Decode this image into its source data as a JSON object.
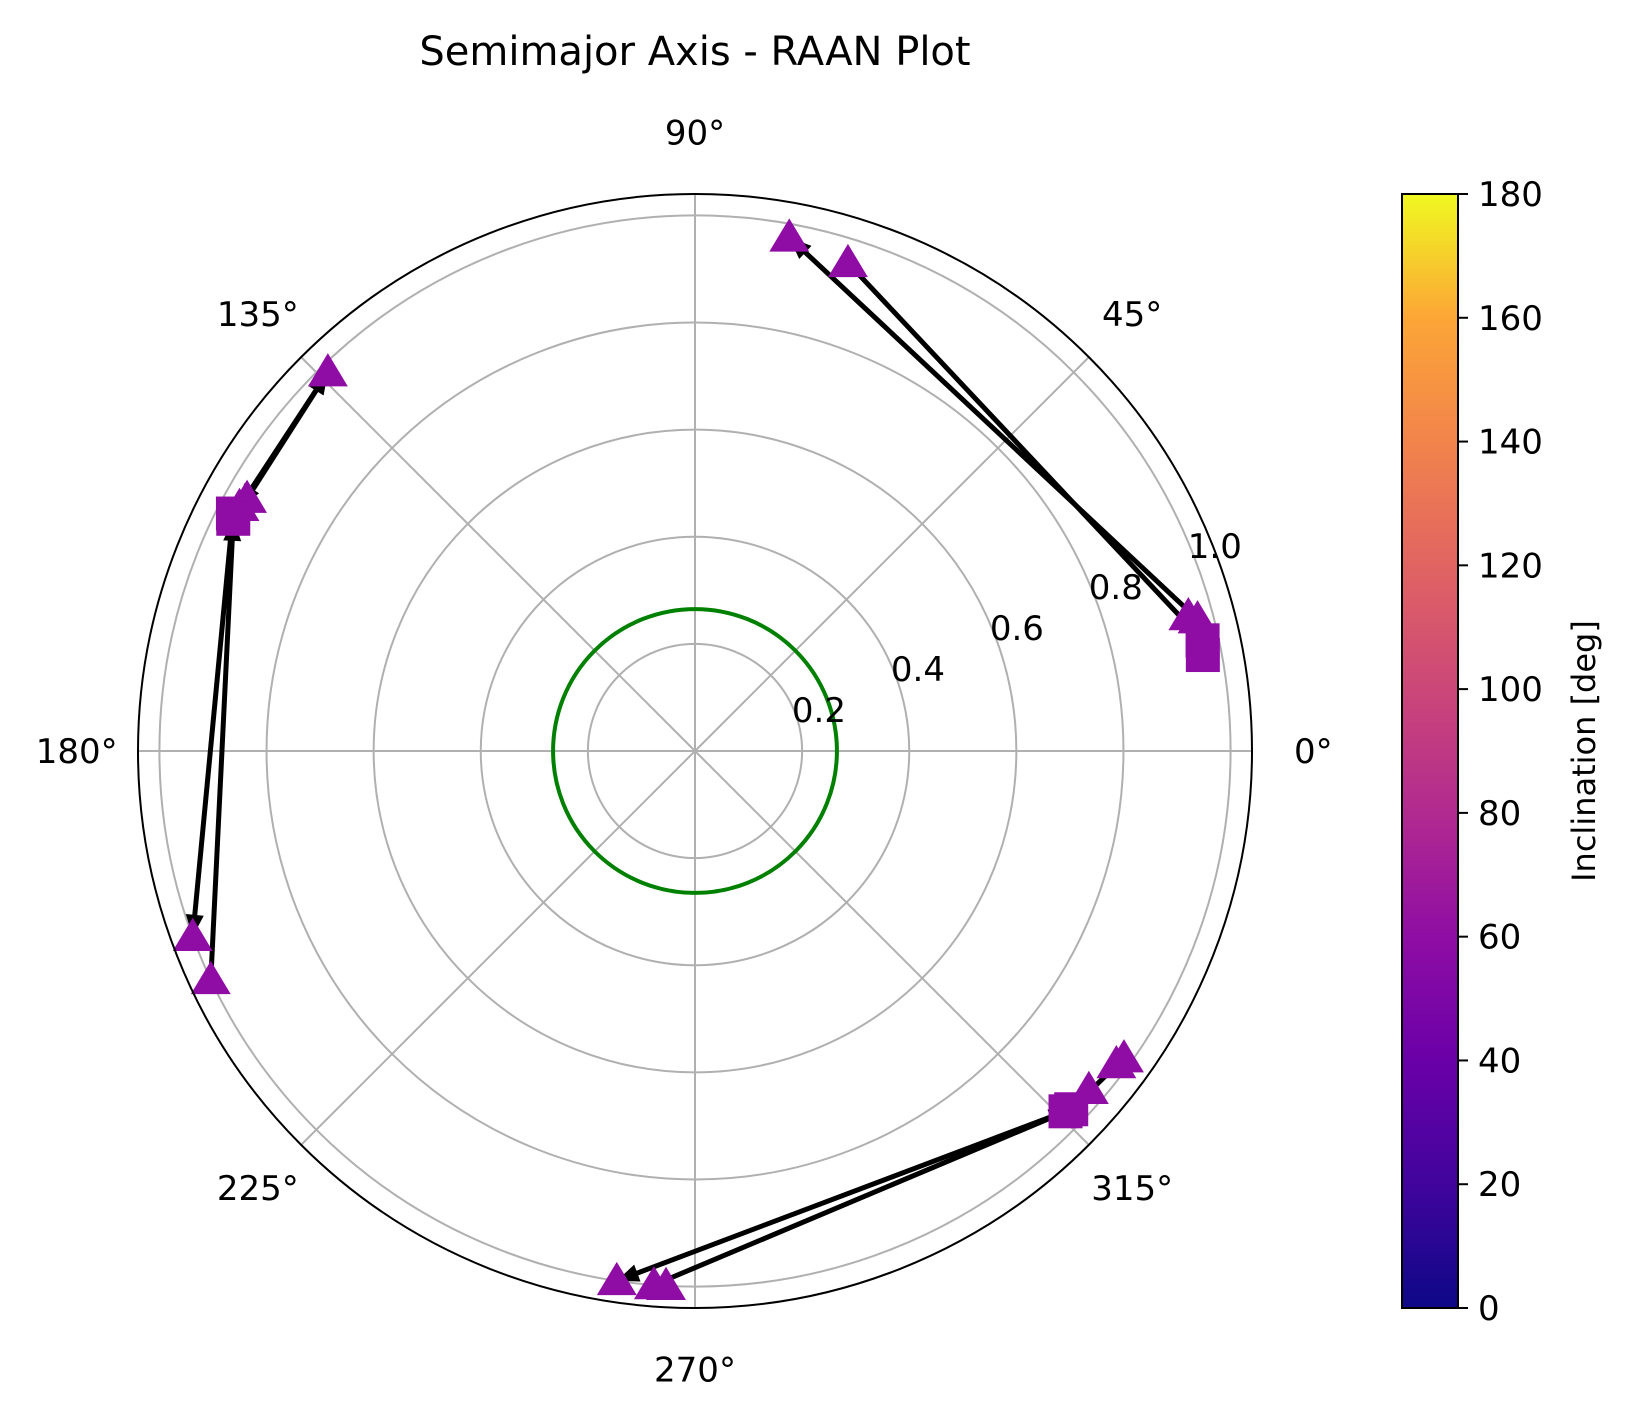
{
  "chart_data": {
    "type": "scatter",
    "subtype": "polar",
    "title": "Semimajor Axis - RAAN Plot",
    "angle_unit": "degrees",
    "angle_ticks": [
      "0°",
      "45°",
      "90°",
      "135°",
      "180°",
      "225°",
      "270°",
      "315°"
    ],
    "radial_ticks": [
      "0.2",
      "0.4",
      "0.6",
      "0.8",
      "1.0"
    ],
    "radial_tick_values": [
      0.2,
      0.4,
      0.6,
      0.8,
      1.0
    ],
    "rlim": [
      0,
      1.04
    ],
    "grid": true,
    "reference_circle": {
      "r": 0.265,
      "color": "#008000"
    },
    "marker_color": "#8f0da4",
    "colorbar": {
      "label": "Inclination [deg]",
      "ticks": [
        "0",
        "20",
        "40",
        "60",
        "80",
        "100",
        "120",
        "140",
        "160",
        "180"
      ],
      "range": [
        0,
        180
      ],
      "colormap": "plasma"
    },
    "markers": [
      {
        "shape": "triangle",
        "theta": 79.6,
        "r": 0.975,
        "inclination": 57
      },
      {
        "shape": "triangle",
        "theta": 72.6,
        "r": 0.955,
        "inclination": 57
      },
      {
        "shape": "triangle",
        "theta": 14.7,
        "r": 0.97,
        "inclination": 57
      },
      {
        "shape": "triangle",
        "theta": 15.3,
        "r": 0.955,
        "inclination": 57
      },
      {
        "shape": "square",
        "theta": 12.3,
        "r": 0.97,
        "inclination": 57
      },
      {
        "shape": "square",
        "theta": 10.7,
        "r": 0.965,
        "inclination": 57
      },
      {
        "shape": "triangle",
        "theta": 134.1,
        "r": 0.985,
        "inclination": 57
      },
      {
        "shape": "triangle",
        "theta": 150.6,
        "r": 0.96,
        "inclination": 57
      },
      {
        "shape": "triangle",
        "theta": 151.8,
        "r": 0.965,
        "inclination": 57
      },
      {
        "shape": "square",
        "theta": 152.8,
        "r": 0.97,
        "inclination": 57
      },
      {
        "shape": "square",
        "theta": 153.3,
        "r": 0.965,
        "inclination": 57
      },
      {
        "shape": "triangle",
        "theta": 200.3,
        "r": 1.0,
        "inclination": 57
      },
      {
        "shape": "triangle",
        "theta": 205.3,
        "r": 1.0,
        "inclination": 57
      },
      {
        "shape": "triangle",
        "theta": 261.6,
        "r": 1.0,
        "inclination": 57
      },
      {
        "shape": "triangle",
        "theta": 265.6,
        "r": 1.0,
        "inclination": 57
      },
      {
        "shape": "triangle",
        "theta": 266.9,
        "r": 1.0,
        "inclination": 57
      },
      {
        "shape": "triangle",
        "theta": 324.4,
        "r": 0.985,
        "inclination": 57
      },
      {
        "shape": "triangle",
        "theta": 323.4,
        "r": 0.98,
        "inclination": 57
      },
      {
        "shape": "triangle",
        "theta": 319.3,
        "r": 0.97,
        "inclination": 57
      },
      {
        "shape": "square",
        "theta": 316.4,
        "r": 0.97,
        "inclination": 57
      },
      {
        "shape": "square",
        "theta": 315.8,
        "r": 0.965,
        "inclination": 57
      }
    ],
    "arrows": [
      {
        "from": {
          "theta": 14.7,
          "r": 0.97
        },
        "to": {
          "theta": 79.6,
          "r": 0.975
        }
      },
      {
        "from": {
          "theta": 72.6,
          "r": 0.955
        },
        "to": {
          "theta": 12.3,
          "r": 0.97
        }
      },
      {
        "from": {
          "theta": 150.6,
          "r": 0.96
        },
        "to": {
          "theta": 134.1,
          "r": 0.985
        }
      },
      {
        "from": {
          "theta": 134.1,
          "r": 0.985
        },
        "to": {
          "theta": 151.8,
          "r": 0.965
        }
      },
      {
        "from": {
          "theta": 152.8,
          "r": 0.97
        },
        "to": {
          "theta": 200.3,
          "r": 1.0
        }
      },
      {
        "from": {
          "theta": 205.3,
          "r": 1.0
        },
        "to": {
          "theta": 153.3,
          "r": 0.965
        }
      },
      {
        "from": {
          "theta": 316.4,
          "r": 0.97
        },
        "to": {
          "theta": 261.6,
          "r": 1.0
        }
      },
      {
        "from": {
          "theta": 265.6,
          "r": 1.0
        },
        "to": {
          "theta": 316.4,
          "r": 0.97
        }
      },
      {
        "from": {
          "theta": 324.4,
          "r": 0.985
        },
        "to": {
          "theta": 316.4,
          "r": 0.97
        }
      }
    ]
  }
}
